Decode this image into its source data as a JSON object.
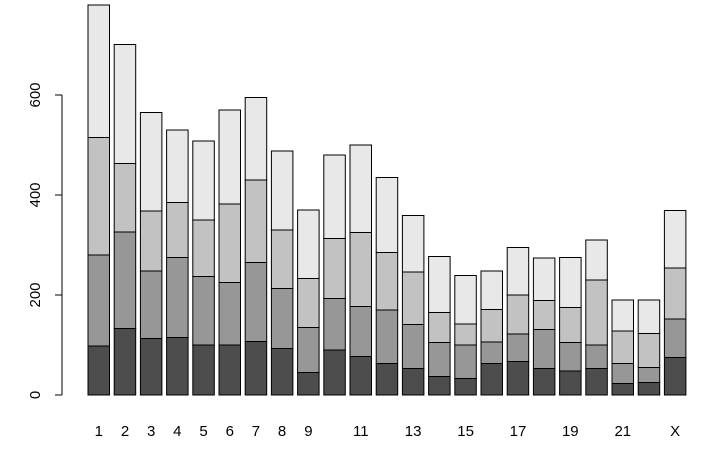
{
  "chart_data": {
    "type": "bar",
    "stacked": true,
    "categories": [
      "1",
      "2",
      "3",
      "4",
      "5",
      "6",
      "7",
      "8",
      "9",
      "10",
      "11",
      "12",
      "13",
      "14",
      "15",
      "16",
      "17",
      "18",
      "19",
      "20",
      "21",
      "22",
      "X"
    ],
    "shown_x_tick_labels": [
      "1",
      "2",
      "3",
      "4",
      "5",
      "6",
      "7",
      "8",
      "9",
      "11",
      "13",
      "15",
      "17",
      "19",
      "21",
      "X"
    ],
    "y_ticks": [
      "0",
      "200",
      "400",
      "600"
    ],
    "ylim": [
      0,
      780
    ],
    "grid": false,
    "legend": "none",
    "series": [
      {
        "color": "#4d4d4d",
        "values": [
          98,
          133,
          113,
          115,
          100,
          100,
          107,
          93,
          45,
          90,
          77,
          63,
          53,
          37,
          33,
          63,
          67,
          53,
          48,
          53,
          23,
          25,
          75
        ]
      },
      {
        "color": "#979797",
        "values": [
          182,
          193,
          135,
          160,
          137,
          125,
          158,
          120,
          90,
          103,
          100,
          107,
          88,
          68,
          67,
          43,
          55,
          78,
          57,
          47,
          40,
          30,
          77
        ]
      },
      {
        "color": "#c2c2c2",
        "values": [
          235,
          137,
          120,
          110,
          113,
          157,
          165,
          117,
          98,
          120,
          148,
          115,
          105,
          60,
          42,
          65,
          78,
          58,
          70,
          130,
          65,
          68,
          102
        ]
      },
      {
        "color": "#e8e8e8",
        "values": [
          265,
          238,
          197,
          145,
          158,
          188,
          165,
          158,
          137,
          167,
          175,
          150,
          113,
          112,
          97,
          77,
          95,
          85,
          100,
          80,
          62,
          67,
          115
        ]
      }
    ]
  }
}
